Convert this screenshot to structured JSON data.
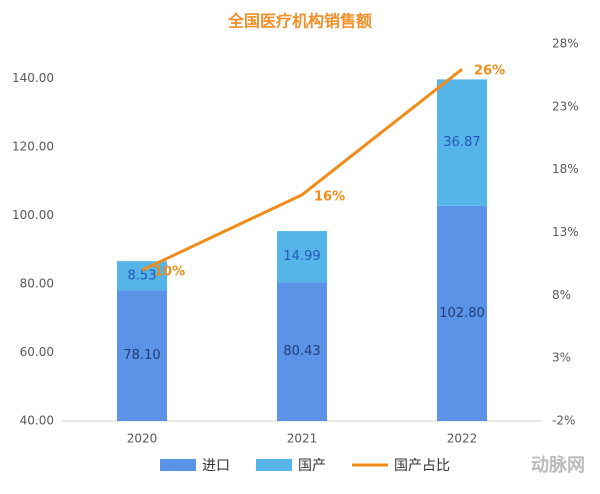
{
  "chart_data": {
    "type": "bar",
    "stacked": true,
    "title": "全国医疗机构销售额",
    "categories": [
      "2020",
      "2021",
      "2022"
    ],
    "series": [
      {
        "name": "进口",
        "color": "#5b93e6",
        "values": [
          78.1,
          80.43,
          102.8
        ],
        "value_labels": [
          "78.10",
          "80.43",
          "102.80"
        ]
      },
      {
        "name": "国产",
        "color": "#55b5e8",
        "values": [
          8.53,
          14.99,
          36.87
        ],
        "value_labels": [
          "8.53",
          "14.99",
          "36.87"
        ]
      },
      {
        "name": "国产占比",
        "type": "line",
        "axis": "y2",
        "color": "#f08c1a",
        "values": [
          10,
          16,
          26
        ],
        "value_labels": [
          "10%",
          "16%",
          "26%"
        ]
      }
    ],
    "ylim": [
      40,
      150
    ],
    "yticks": [
      {
        "value": 40,
        "label": "40.00"
      },
      {
        "value": 60,
        "label": "60.00"
      },
      {
        "value": 80,
        "label": "80.00"
      },
      {
        "value": 100,
        "label": "100.00"
      },
      {
        "value": 120,
        "label": "120.00"
      },
      {
        "value": 140,
        "label": "140.00"
      }
    ],
    "y2lim": [
      -2,
      28
    ],
    "y2ticks": [
      {
        "value": -2,
        "label": "-2%"
      },
      {
        "value": 3,
        "label": "3%"
      },
      {
        "value": 8,
        "label": "8%"
      },
      {
        "value": 13,
        "label": "13%"
      },
      {
        "value": 18,
        "label": "18%"
      },
      {
        "value": 23,
        "label": "23%"
      },
      {
        "value": 28,
        "label": "28%"
      }
    ],
    "grid": false,
    "legend": "bottom",
    "watermark": "动脉网"
  }
}
